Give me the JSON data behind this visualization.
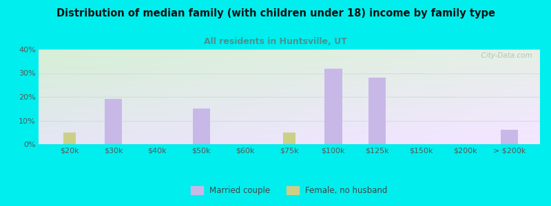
{
  "title": "Distribution of median family (with children under 18) income by family type",
  "subtitle": "All residents in Huntsville, UT",
  "categories": [
    "$20k",
    "$30k",
    "$40k",
    "$50k",
    "$60k",
    "$75k",
    "$100k",
    "$125k",
    "$150k",
    "$200k",
    "> $200k"
  ],
  "married_couple": [
    0,
    19,
    0,
    15,
    0,
    0,
    32,
    28,
    0,
    0,
    6
  ],
  "female_no_husband": [
    5,
    0,
    0,
    0,
    0,
    5,
    0,
    0,
    0,
    0,
    0
  ],
  "married_color": "#c8b8e8",
  "female_color": "#cccf88",
  "bg_color": "#00eeee",
  "title_color": "#111111",
  "subtitle_color": "#4a9090",
  "ylim": [
    0,
    40
  ],
  "bar_width": 0.4,
  "watermark": "  City-Data.com"
}
